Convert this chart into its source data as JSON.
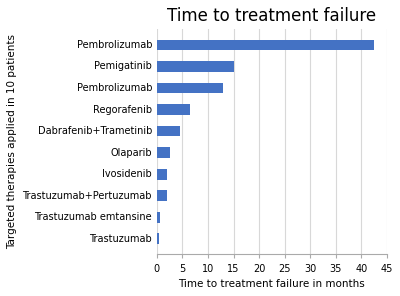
{
  "title": "Time to treatment failure",
  "xlabel": "Time to treatment failure in months",
  "ylabel": "Targeted therapies applied in 10 patients",
  "categories": [
    "Pembrolizumab",
    "Pemigatinib",
    "Pembrolizumab",
    "Regorafenib",
    "Dabrafenib+Trametinib",
    "Olaparib",
    "Ivosidenib",
    "Trastuzumab+Pertuzumab",
    "Trastuzumab emtansine",
    "Trastuzumab"
  ],
  "values": [
    42.5,
    15.0,
    13.0,
    6.5,
    4.5,
    2.5,
    2.0,
    2.0,
    0.6,
    0.4
  ],
  "bar_color": "#4472c4",
  "xlim": [
    0,
    45
  ],
  "xticks": [
    0,
    5,
    10,
    15,
    20,
    25,
    30,
    35,
    40,
    45
  ],
  "background_color": "#ffffff",
  "bar_height": 0.5,
  "title_fontsize": 12,
  "label_fontsize": 7.5,
  "tick_fontsize": 7,
  "grid_color": "#d8d8d8",
  "figsize": [
    4.0,
    2.96
  ],
  "dpi": 100
}
